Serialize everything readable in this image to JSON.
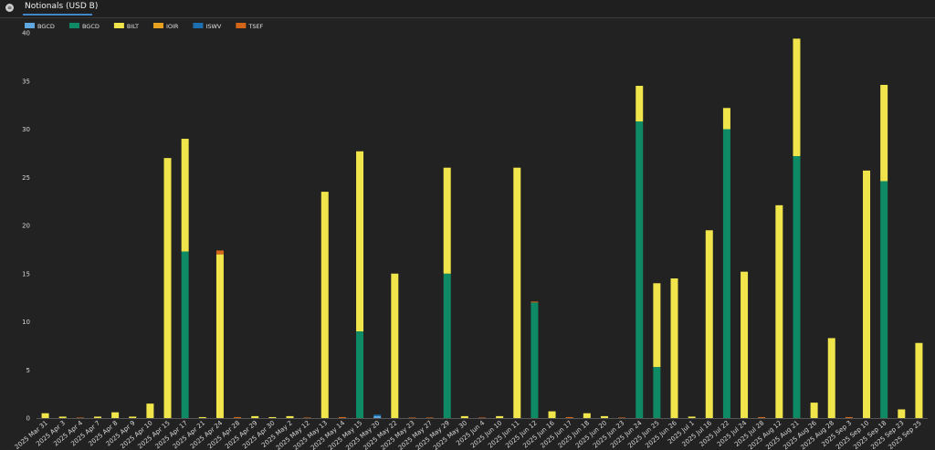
{
  "tab": {
    "label": "Notionals (USD B)"
  },
  "chart_data": {
    "type": "bar",
    "stacked": true,
    "ylim": [
      0,
      40
    ],
    "yticks": [
      0,
      5,
      10,
      15,
      20,
      25,
      30,
      35,
      40
    ],
    "grid": false,
    "legend_position": "top-left",
    "categories": [
      "2025 Mar 31",
      "2025 Apr 3",
      "2025 Apr 4",
      "2025 Apr 7",
      "2025 Apr 8",
      "2025 Apr 9",
      "2025 Apr 10",
      "2025 Apr 15",
      "2025 Apr 17",
      "2025 Apr 21",
      "2025 Apr 24",
      "2025 Apr 28",
      "2025 Apr 29",
      "2025 Apr 30",
      "2025 May 2",
      "2025 May 12",
      "2025 May 13",
      "2025 May 14",
      "2025 May 15",
      "2025 May 20",
      "2025 May 22",
      "2025 May 23",
      "2025 May 27",
      "2025 May 29",
      "2025 May 30",
      "2025 Jun 4",
      "2025 Jun 10",
      "2025 Jun 11",
      "2025 Jun 12",
      "2025 Jun 16",
      "2025 Jun 17",
      "2025 Jun 18",
      "2025 Jun 20",
      "2025 Jun 23",
      "2025 Jun 24",
      "2025 Jun 25",
      "2025 Jun 26",
      "2025 Jul 1",
      "2025 Jul 16",
      "2025 Jul 22",
      "2025 Jul 24",
      "2025 Jul 28",
      "2025 Aug 12",
      "2025 Aug 21",
      "2025 Aug 26",
      "2025 Aug 28",
      "2025 Sep 3",
      "2025 Sep 10",
      "2025 Sep 18",
      "2025 Sep 23",
      "2025 Sep 25"
    ],
    "series": [
      {
        "name": "BGCD",
        "color": "#5fa8e0",
        "values": [
          0,
          0,
          0,
          0,
          0,
          0,
          0,
          0,
          0,
          0,
          0,
          0,
          0,
          0,
          0,
          0,
          0,
          0,
          0,
          0.2,
          0,
          0,
          0,
          0,
          0,
          0,
          0,
          0,
          0,
          0,
          0,
          0,
          0,
          0,
          0,
          0,
          0,
          0,
          0,
          0,
          0,
          0,
          0,
          0,
          0,
          0,
          0,
          0,
          0,
          0,
          0
        ]
      },
      {
        "name": "BGCD",
        "color": "#0e8a64",
        "values": [
          0,
          0,
          0,
          0,
          0,
          0,
          0,
          0,
          17.3,
          0,
          0,
          0,
          0,
          0,
          0,
          0,
          0,
          0,
          9.0,
          0,
          0,
          0,
          0,
          15.0,
          0,
          0,
          0,
          0,
          12.0,
          0,
          0,
          0,
          0,
          0,
          30.8,
          5.3,
          0,
          0,
          0,
          30.0,
          0,
          0,
          0,
          27.2,
          0,
          0,
          0,
          0,
          24.6,
          0,
          0
        ]
      },
      {
        "name": "BILT",
        "color": "#f0e54a",
        "values": [
          0.5,
          0.15,
          0,
          0.15,
          0.6,
          0.15,
          1.5,
          27.0,
          11.7,
          0.1,
          17.0,
          0,
          0.2,
          0.1,
          0.2,
          0,
          23.5,
          0,
          18.7,
          0,
          15.0,
          0,
          0,
          11.0,
          0.2,
          0,
          0.2,
          26.0,
          0,
          0.7,
          0,
          0.5,
          0.2,
          0,
          3.7,
          8.7,
          14.5,
          0.15,
          19.5,
          2.2,
          15.2,
          0,
          22.1,
          12.2,
          1.6,
          8.3,
          0,
          25.7,
          10.0,
          0.9,
          7.8
        ]
      },
      {
        "name": "IOIR",
        "color": "#e8a21f",
        "values": [
          0,
          0,
          0,
          0,
          0,
          0,
          0,
          0,
          0,
          0,
          0,
          0,
          0,
          0,
          0,
          0,
          0,
          0,
          0,
          0,
          0,
          0,
          0,
          0,
          0,
          0,
          0,
          0,
          0,
          0,
          0,
          0,
          0,
          0,
          0,
          0,
          0,
          0,
          0,
          0,
          0,
          0,
          0,
          0,
          0,
          0,
          0,
          0,
          0,
          0,
          0
        ]
      },
      {
        "name": "ISWV",
        "color": "#1c6fb0",
        "values": [
          0,
          0,
          0,
          0,
          0,
          0,
          0,
          0,
          0,
          0,
          0,
          0,
          0,
          0,
          0,
          0,
          0,
          0,
          0,
          0.15,
          0,
          0,
          0,
          0,
          0,
          0,
          0,
          0,
          0,
          0,
          0,
          0,
          0,
          0,
          0,
          0,
          0,
          0,
          0,
          0,
          0,
          0,
          0,
          0,
          0,
          0,
          0,
          0,
          0,
          0,
          0
        ]
      },
      {
        "name": "TSEF",
        "color": "#d4661a",
        "values": [
          0,
          0,
          0.05,
          0,
          0,
          0,
          0,
          0,
          0,
          0,
          0.4,
          0.1,
          0,
          0,
          0,
          0.05,
          0,
          0.1,
          0,
          0,
          0,
          0.05,
          0.05,
          0,
          0,
          0.05,
          0,
          0,
          0.1,
          0,
          0.1,
          0,
          0,
          0.05,
          0,
          0,
          0,
          0,
          0,
          0,
          0,
          0.1,
          0,
          0,
          0,
          0,
          0.1,
          0,
          0,
          0,
          0
        ]
      }
    ]
  }
}
